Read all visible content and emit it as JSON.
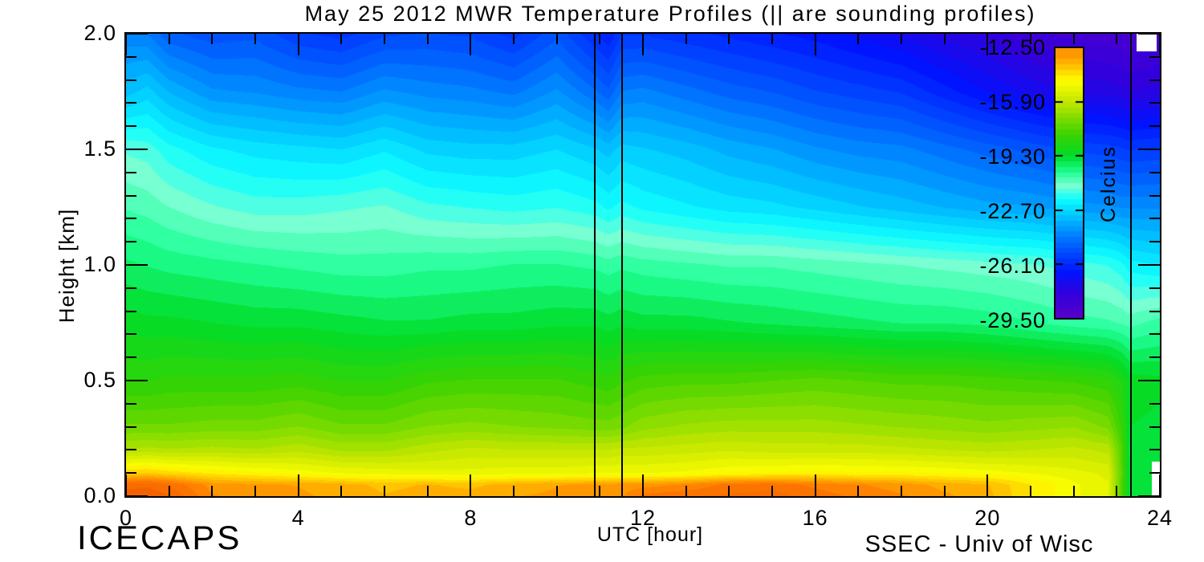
{
  "annotations": {
    "bottom_left": "ICECAPS",
    "bottom_right": "SSEC - Univ of Wisc"
  },
  "chart_data": {
    "type": "heatmap",
    "title": "May 25 2012 MWR Temperature Profiles (|| are sounding profiles)",
    "xlabel": "UTC [hour]",
    "ylabel": "Height [km]",
    "xlim": [
      0,
      24
    ],
    "ylim": [
      0.0,
      2.0
    ],
    "x_major_ticks": [
      0,
      4,
      8,
      12,
      16,
      20,
      24
    ],
    "x_tick_labels": [
      "0",
      "4",
      "8",
      "12",
      "16",
      "20",
      "24"
    ],
    "x_minor_step": 1,
    "y_major_ticks": [
      0.0,
      0.5,
      1.0,
      1.5,
      2.0
    ],
    "y_tick_labels": [
      "0.0",
      "0.5",
      "1.0",
      "1.5",
      "2.0"
    ],
    "y_minor_step": 0.1,
    "grid_lines": "off",
    "legend_position": "right-colorbar",
    "colorbar": {
      "title": "Celcius",
      "min": -29.5,
      "max": -12.5,
      "tick_values": [
        -12.5,
        -15.9,
        -19.3,
        -22.7,
        -26.1,
        -29.5
      ],
      "tick_labels": [
        "-12.50",
        "-15.90",
        "-19.30",
        "-22.70",
        "-26.10",
        "-29.50"
      ]
    },
    "contour_interval_c": 0.34,
    "colormap_stops": [
      {
        "f": 0.0,
        "color": "#5A00C8"
      },
      {
        "f": 0.09,
        "color": "#3200DC"
      },
      {
        "f": 0.17,
        "color": "#0014FF"
      },
      {
        "f": 0.28,
        "color": "#0069FF"
      },
      {
        "f": 0.38,
        "color": "#00C8FF"
      },
      {
        "f": 0.44,
        "color": "#0FFFFF"
      },
      {
        "f": 0.49,
        "color": "#78FFD2"
      },
      {
        "f": 0.54,
        "color": "#1EFF96"
      },
      {
        "f": 0.6,
        "color": "#00DC28"
      },
      {
        "f": 0.68,
        "color": "#3CD200"
      },
      {
        "f": 0.8,
        "color": "#C3E600"
      },
      {
        "f": 0.88,
        "color": "#FFFF00"
      },
      {
        "f": 0.94,
        "color": "#FFB900"
      },
      {
        "f": 1.0,
        "color": "#FF7800"
      },
      {
        "f": 1.12,
        "color": "#E14600"
      }
    ],
    "sounding_profile_lines_utc": [
      10.88,
      11.52,
      23.33
    ],
    "missing_data_rects": [
      {
        "utc": [
          23.46,
          23.92
        ],
        "km": [
          1.925,
          2.0
        ]
      },
      {
        "utc": [
          23.82,
          24.0
        ],
        "km": [
          0.0,
          0.15
        ]
      }
    ],
    "grid": {
      "hours": [
        0,
        0.5,
        1,
        2,
        3,
        4,
        5,
        6,
        7,
        8,
        9,
        10,
        10.9,
        11.2,
        11.5,
        12,
        13,
        14,
        15,
        16,
        17,
        18,
        19,
        20,
        21,
        22,
        22.8,
        23.1,
        23.3,
        24
      ],
      "heights_km": [
        0.0,
        0.05,
        0.1,
        0.2,
        0.3,
        0.5,
        0.75,
        1.0,
        1.25,
        1.5,
        1.75,
        2.0
      ],
      "temps_c_by_hour": [
        [
          -11.6,
          -12.0,
          -13.9,
          -16.2,
          -17.2,
          -18.3,
          -19.1,
          -19.9,
          -20.7,
          -21.4,
          -23.2,
          -24.3
        ],
        [
          -11.5,
          -11.9,
          -13.8,
          -16.1,
          -17.2,
          -18.3,
          -19.2,
          -20.0,
          -20.8,
          -21.5,
          -22.9,
          -24.4
        ],
        [
          -11.8,
          -12.2,
          -14.0,
          -16.2,
          -17.2,
          -18.2,
          -19.2,
          -20.1,
          -21.0,
          -21.9,
          -23.4,
          -25.0
        ],
        [
          -12.8,
          -13.0,
          -14.3,
          -16.1,
          -17.1,
          -18.2,
          -19.3,
          -20.2,
          -21.3,
          -22.3,
          -24.0,
          -25.3
        ],
        [
          -13.0,
          -13.1,
          -14.5,
          -16.2,
          -17.1,
          -18.2,
          -19.4,
          -20.3,
          -21.5,
          -22.5,
          -24.1,
          -25.2
        ],
        [
          -13.1,
          -13.2,
          -14.7,
          -16.0,
          -16.9,
          -18.1,
          -19.4,
          -20.4,
          -21.5,
          -22.6,
          -24.3,
          -25.7
        ],
        [
          -13.3,
          -13.4,
          -14.9,
          -16.3,
          -17.2,
          -18.3,
          -19.5,
          -20.5,
          -21.4,
          -22.7,
          -24.4,
          -25.9
        ],
        [
          -13.5,
          -13.6,
          -15.0,
          -16.3,
          -17.2,
          -18.3,
          -19.6,
          -20.5,
          -21.3,
          -22.4,
          -24.0,
          -25.5
        ],
        [
          -13.4,
          -13.5,
          -15.1,
          -16.0,
          -16.9,
          -18.0,
          -19.6,
          -20.4,
          -21.6,
          -22.8,
          -24.2,
          -25.4
        ],
        [
          -13.4,
          -13.6,
          -15.1,
          -15.8,
          -16.8,
          -17.9,
          -19.5,
          -20.4,
          -21.7,
          -22.9,
          -24.3,
          -25.5
        ],
        [
          -13.2,
          -13.4,
          -15.0,
          -15.9,
          -16.9,
          -17.9,
          -19.5,
          -20.3,
          -21.8,
          -22.9,
          -24.5,
          -25.9
        ],
        [
          -13.1,
          -13.2,
          -15.0,
          -15.9,
          -17.0,
          -17.9,
          -19.4,
          -20.3,
          -21.7,
          -22.7,
          -24.0,
          -25.2
        ],
        [
          -13.0,
          -13.1,
          -14.9,
          -15.9,
          -17.1,
          -18.1,
          -19.4,
          -20.4,
          -21.9,
          -23.0,
          -24.7,
          -26.1
        ],
        [
          -13.0,
          -13.1,
          -14.9,
          -15.9,
          -17.1,
          -18.2,
          -19.5,
          -20.5,
          -22.1,
          -23.2,
          -25.0,
          -26.4
        ],
        [
          -12.9,
          -13.0,
          -14.9,
          -15.8,
          -17.0,
          -18.0,
          -19.4,
          -20.4,
          -21.9,
          -22.9,
          -24.4,
          -25.8
        ],
        [
          -12.4,
          -13.0,
          -14.9,
          -15.8,
          -16.7,
          -17.8,
          -19.5,
          -20.5,
          -22.1,
          -23.0,
          -24.3,
          -25.8
        ],
        [
          -12.2,
          -12.8,
          -14.8,
          -15.7,
          -16.5,
          -17.7,
          -19.5,
          -20.6,
          -22.3,
          -23.2,
          -24.6,
          -26.0
        ],
        [
          -12.1,
          -12.4,
          -14.6,
          -15.6,
          -16.4,
          -17.7,
          -19.6,
          -20.7,
          -22.5,
          -23.5,
          -24.9,
          -26.2
        ],
        [
          -12.0,
          -12.3,
          -14.5,
          -15.7,
          -16.4,
          -17.6,
          -19.7,
          -20.7,
          -22.6,
          -23.7,
          -25.1,
          -26.4
        ],
        [
          -12.3,
          -12.6,
          -14.4,
          -15.7,
          -16.4,
          -17.5,
          -19.8,
          -20.8,
          -22.8,
          -24.0,
          -25.4,
          -26.6
        ],
        [
          -12.6,
          -12.8,
          -14.5,
          -15.7,
          -16.5,
          -17.6,
          -19.9,
          -20.9,
          -23.0,
          -24.2,
          -25.6,
          -26.9
        ],
        [
          -12.8,
          -13.0,
          -14.5,
          -15.8,
          -16.6,
          -17.7,
          -20.0,
          -21.0,
          -23.2,
          -24.3,
          -25.8,
          -27.2
        ],
        [
          -13.1,
          -13.3,
          -14.6,
          -15.9,
          -16.7,
          -17.7,
          -20.0,
          -21.1,
          -23.4,
          -24.6,
          -26.3,
          -27.6
        ],
        [
          -13.4,
          -13.5,
          -14.7,
          -16.0,
          -16.8,
          -17.8,
          -20.1,
          -21.2,
          -23.6,
          -24.9,
          -26.8,
          -27.9
        ],
        [
          -14.2,
          -14.2,
          -14.9,
          -15.9,
          -16.7,
          -17.9,
          -20.3,
          -21.3,
          -23.7,
          -25.2,
          -27.2,
          -28.4
        ],
        [
          -14.8,
          -14.8,
          -15.1,
          -15.8,
          -16.6,
          -18.0,
          -20.5,
          -21.5,
          -23.9,
          -25.5,
          -27.5,
          -28.6
        ],
        [
          -15.2,
          -15.2,
          -15.3,
          -16.0,
          -17.0,
          -18.2,
          -20.6,
          -21.7,
          -24.0,
          -25.6,
          -27.6,
          -28.7
        ],
        [
          -17.5,
          -17.5,
          -17.4,
          -17.5,
          -18.0,
          -18.6,
          -20.7,
          -21.9,
          -24.1,
          -25.7,
          -27.7,
          -28.8
        ],
        [
          -19.3,
          -19.3,
          -19.4,
          -19.5,
          -19.3,
          -19.1,
          -20.8,
          -22.2,
          -24.1,
          -25.8,
          -27.8,
          -28.9
        ],
        [
          -19.4,
          -19.4,
          -19.5,
          -19.6,
          -19.4,
          -19.2,
          -20.5,
          -22.4,
          -24.1,
          -25.7,
          -27.7,
          -28.6
        ]
      ]
    }
  },
  "colors": {
    "background": "#FFFFFF",
    "axis": "#000000",
    "text": "#000000"
  }
}
